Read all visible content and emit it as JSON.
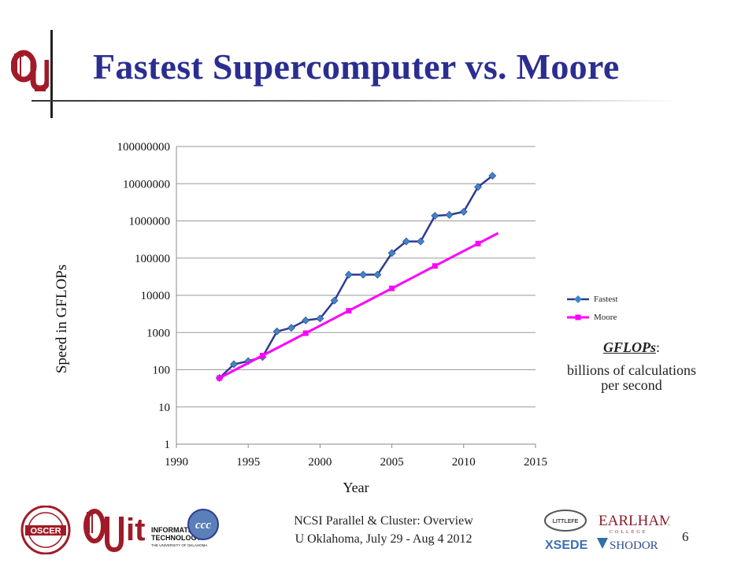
{
  "slide": {
    "title": "Fastest Supercomputer vs. Moore",
    "note_term": "GFLOPs",
    "note_colon": ":",
    "note_body": "billions of calculations per second",
    "footer_line1": "NCSI Parallel & Cluster: Overview",
    "footer_line2": "U Oklahoma, July 29 - Aug 4 2012",
    "page_number": "6",
    "logos": {
      "oscer_text": "OSCER",
      "ou_text": "OU",
      "it_text": "it",
      "it_sub1": "INFORMATION",
      "it_sub2": "TECHNOLOGY",
      "it_sub3": "THE UNIVERSITY OF OKLAHOMA",
      "ccc_text": "ccc",
      "littlefe_text": "LITTLEFE",
      "earlham_text": "EARLHAM",
      "college_text": "COLLEGE",
      "xsede_text": "XSEDE",
      "shodor_text": "SHODOR"
    }
  },
  "chart_data": {
    "type": "line",
    "xlabel": "Year",
    "ylabel": "Speed  in GFLOPs",
    "xlim": [
      1990,
      2015
    ],
    "ylim": [
      1,
      100000000
    ],
    "y_scale": "log",
    "x_ticks": [
      "1990",
      "1995",
      "2000",
      "2005",
      "2010",
      "2015"
    ],
    "y_ticks": [
      "1",
      "10",
      "100",
      "1000",
      "10000",
      "100000",
      "1000000",
      "10000000",
      "100000000"
    ],
    "grid": "horizontal",
    "legend_position": "right",
    "series": [
      {
        "name": "Fastest",
        "color": "#2e3b8f",
        "marker": "diamond",
        "marker_color": "#3f86c8",
        "x": [
          1993,
          1994,
          1995,
          1996,
          1997,
          1998,
          1999,
          2000,
          2001,
          2002,
          2003,
          2004,
          2005,
          2006,
          2007,
          2008,
          2009,
          2010,
          2011,
          2012
        ],
        "y": [
          60,
          140,
          170,
          220,
          1070,
          1340,
          2120,
          2380,
          7230,
          35860,
          35860,
          35860,
          136800,
          280600,
          280600,
          1370000,
          1450000,
          1760000,
          8160000,
          16320000
        ]
      },
      {
        "name": "Moore",
        "color": "#ff00ff",
        "marker": "square",
        "marker_color": "#ff00ff",
        "x": [
          1993,
          1996,
          1999,
          2002,
          2005,
          2008,
          2011,
          2012.4
        ],
        "y": [
          60,
          240,
          960,
          3840,
          15360,
          61440,
          245760,
          470000
        ],
        "marker_count": 7
      }
    ]
  }
}
